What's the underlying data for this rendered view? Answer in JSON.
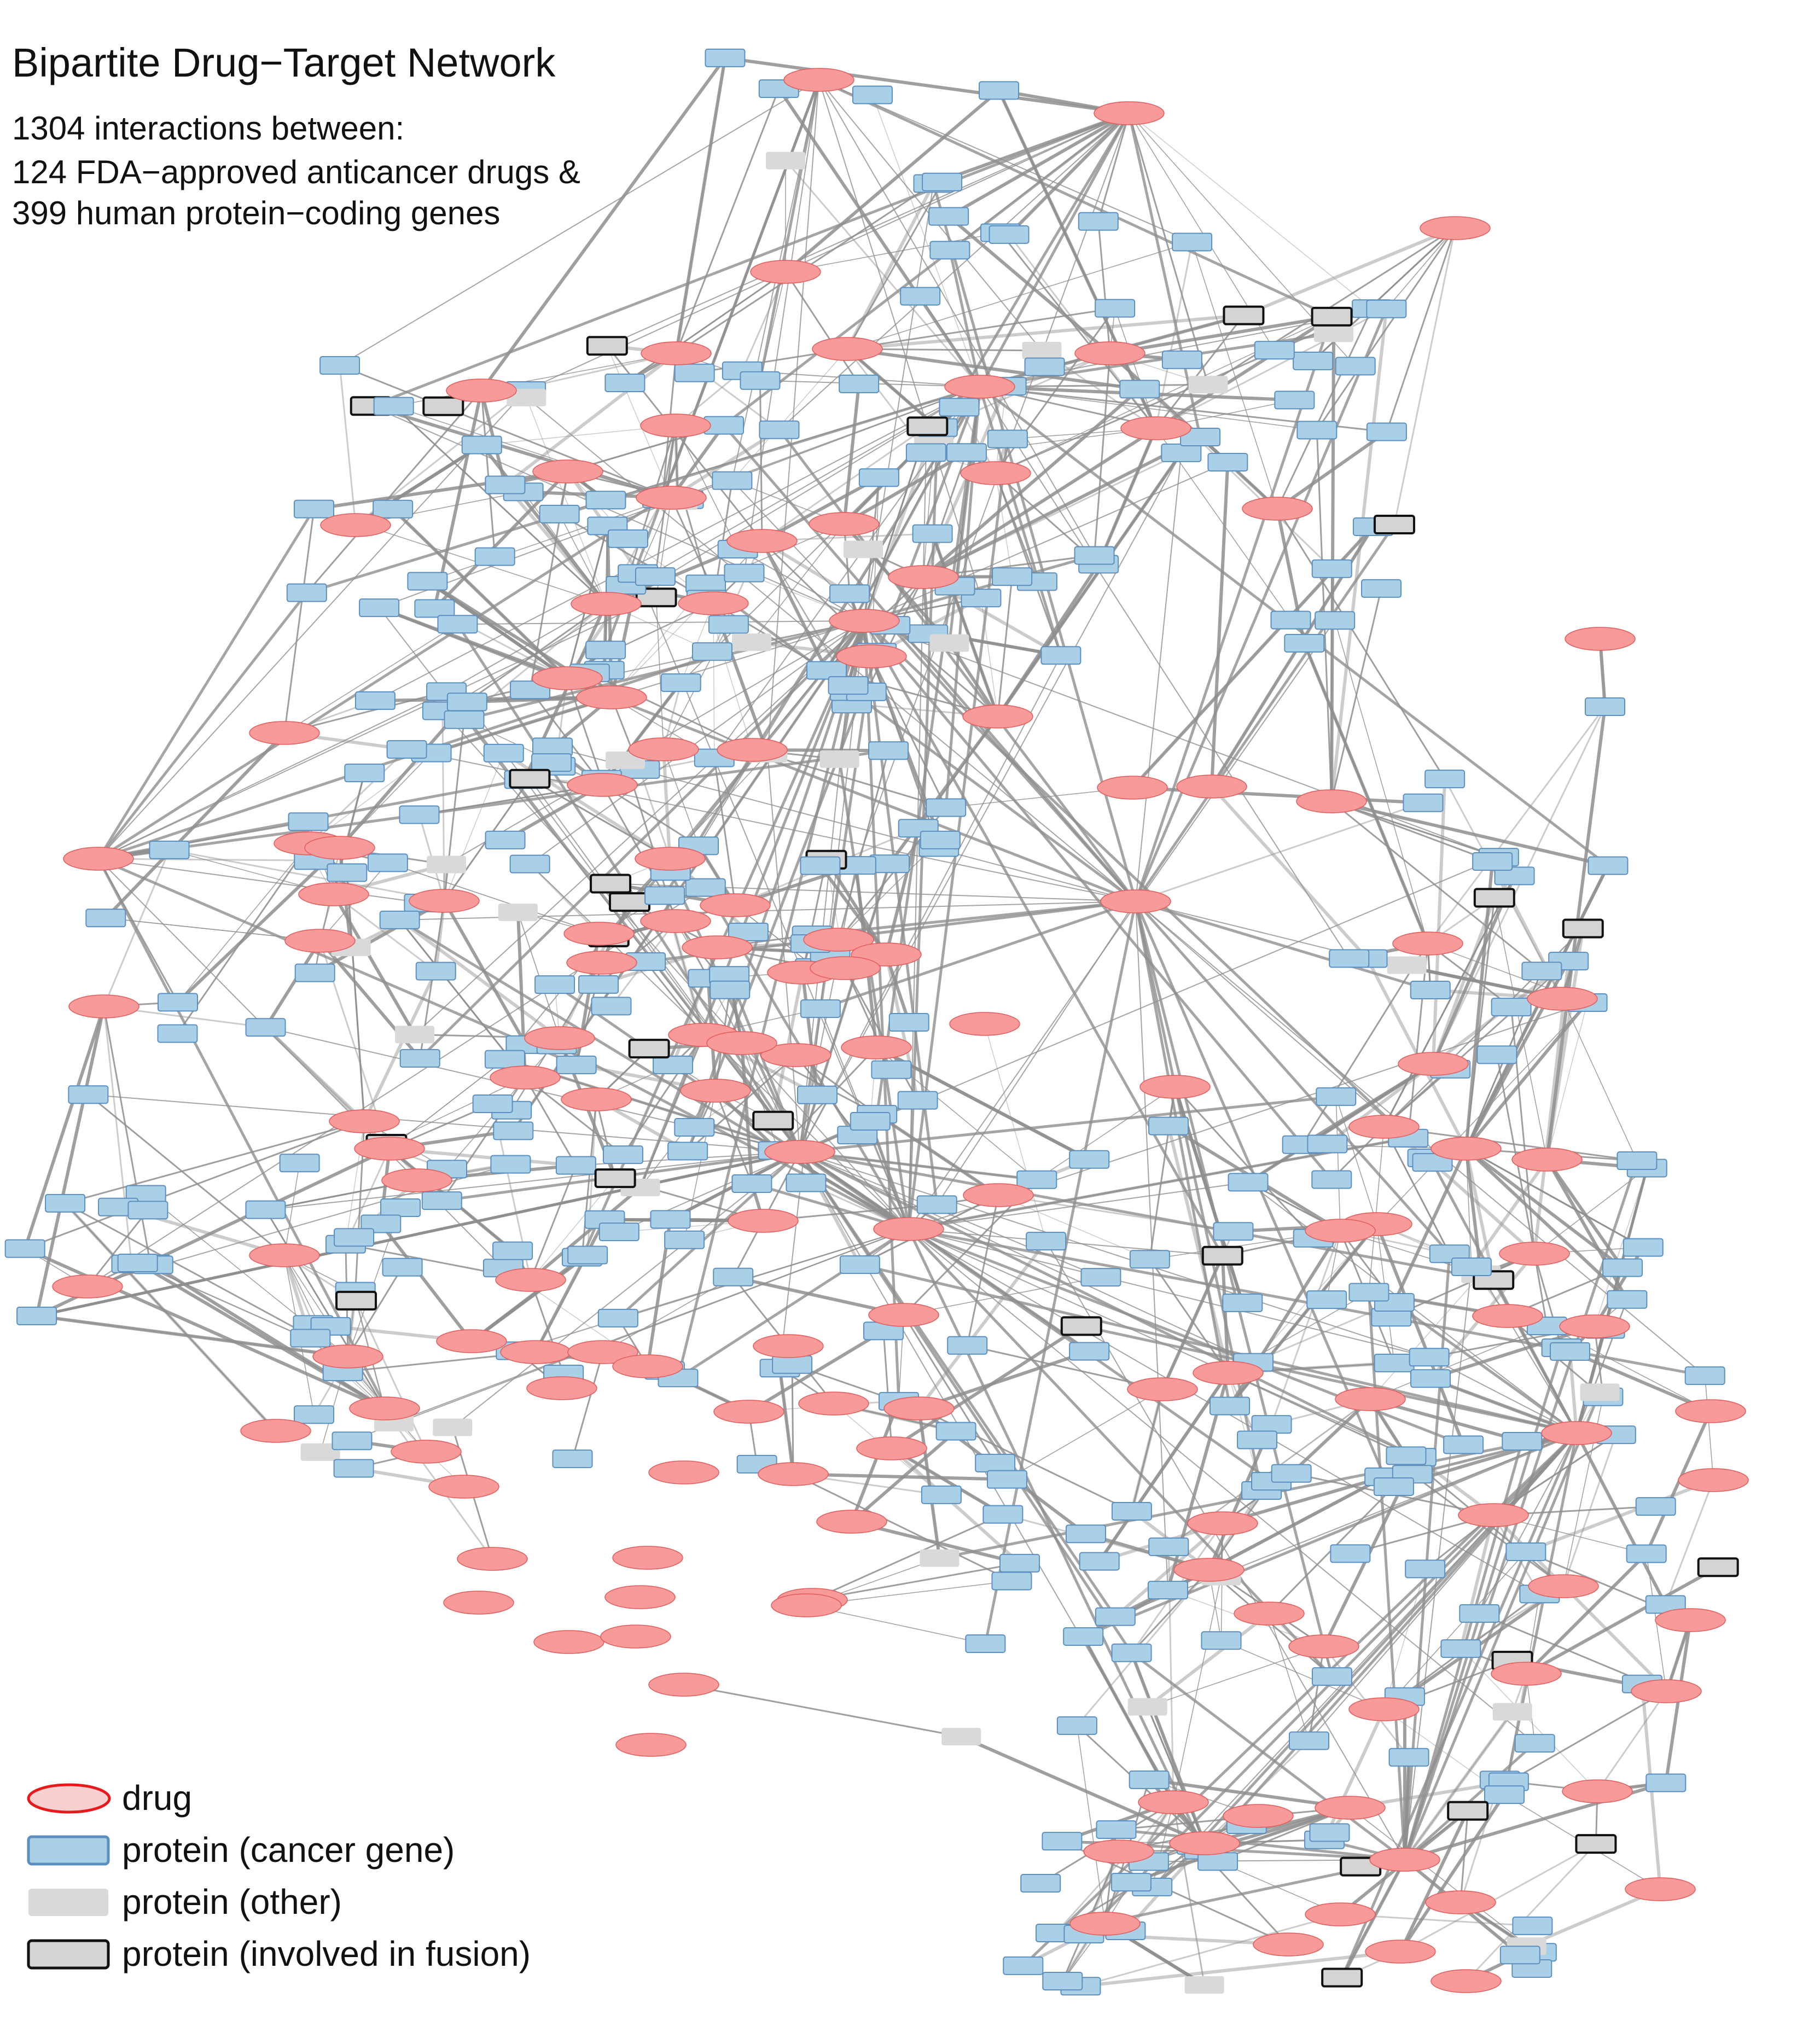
{
  "header": {
    "title": "Bipartite Drug−Target Network",
    "line1": "1304 interactions between:",
    "line2": "124 FDA−approved anticancer drugs &",
    "line3": "399 human protein−coding genes"
  },
  "legend": {
    "drug": "drug",
    "cancer_gene": "protein (cancer gene)",
    "other": "protein (other)",
    "fusion": "protein (involved in fusion)"
  },
  "colors": {
    "drug_fill": "#f79a99",
    "drug_stroke": "#e35a5a",
    "legend_drug_fill": "#f9d0d0",
    "legend_drug_stroke": "#e8191b",
    "cancer_fill": "#a9d0e6",
    "cancer_stroke": "#5c8fbf",
    "other_fill": "#d9d9d9",
    "fusion_fill": "#d4d4d4",
    "fusion_stroke": "#111111",
    "edge": "#8e8e8e"
  }
}
